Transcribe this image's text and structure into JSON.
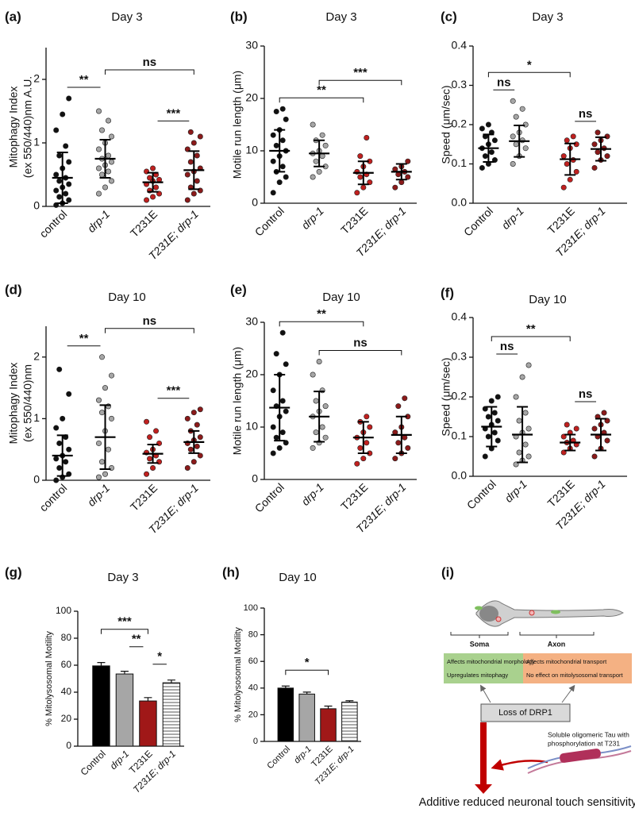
{
  "chart_data": [
    {
      "type": "dot",
      "panel": "(a)",
      "title": "Day 3",
      "ylabel": [
        "Mitophagy Index",
        "(ex 550/440)nm A.U."
      ],
      "categories": [
        "control",
        "drp-1",
        "T231E",
        "T231E; drp-1"
      ],
      "groups": [
        {
          "color": "#111111",
          "mean": 0.45,
          "sd": 0.4,
          "points": [
            0.02,
            0.05,
            0.1,
            0.15,
            0.2,
            0.25,
            0.3,
            0.35,
            0.4,
            0.45,
            0.5,
            0.6,
            0.7,
            0.8,
            0.95,
            1.2,
            1.45,
            1.7
          ]
        },
        {
          "color": "#a6a6a6",
          "mean": 0.75,
          "sd": 0.3,
          "points": [
            0.2,
            0.3,
            0.4,
            0.5,
            0.55,
            0.6,
            0.65,
            0.7,
            0.75,
            0.8,
            0.9,
            1.0,
            1.1,
            1.2,
            1.35,
            1.5
          ]
        },
        {
          "color": "#c0201f",
          "mean": 0.38,
          "sd": 0.15,
          "points": [
            0.1,
            0.15,
            0.2,
            0.25,
            0.3,
            0.35,
            0.4,
            0.42,
            0.45,
            0.5,
            0.55,
            0.6
          ]
        },
        {
          "color": "#8b1a1a",
          "mean": 0.57,
          "sd": 0.3,
          "points": [
            0.1,
            0.2,
            0.25,
            0.3,
            0.4,
            0.5,
            0.55,
            0.6,
            0.7,
            0.8,
            0.9,
            1.0,
            1.1,
            1.17
          ]
        }
      ],
      "ylim": [
        0,
        2.5
      ],
      "yticks": [
        0,
        1,
        2
      ],
      "brackets": [
        {
          "from": 0,
          "to": 1,
          "label": "**"
        },
        {
          "from": 2,
          "to": 3,
          "label": "***"
        },
        {
          "from": 1,
          "to": 3,
          "label": "ns"
        }
      ]
    },
    {
      "type": "dot",
      "panel": "(b)",
      "title": "Day 3",
      "ylabel": [
        "Motile run length (μm)"
      ],
      "categories": [
        "Control",
        "drp-1",
        "T231E",
        "T231E; drp-1"
      ],
      "groups": [
        {
          "color": "#111111",
          "mean": 10,
          "sd": 4,
          "points": [
            2,
            4,
            5,
            6,
            7,
            8,
            9,
            10,
            11,
            12,
            13,
            14,
            16,
            17.5,
            18
          ]
        },
        {
          "color": "#a6a6a6",
          "mean": 9.5,
          "sd": 2.5,
          "points": [
            5,
            6,
            7,
            8,
            9,
            9.5,
            10,
            11,
            12,
            13,
            15
          ]
        },
        {
          "color": "#c0201f",
          "mean": 5.8,
          "sd": 2.2,
          "points": [
            2,
            3,
            4,
            5,
            5.5,
            6,
            7,
            8,
            9,
            12.5
          ]
        },
        {
          "color": "#8b1a1a",
          "mean": 6,
          "sd": 1.5,
          "points": [
            3,
            4,
            5,
            5.5,
            6,
            6.5,
            7,
            8
          ]
        }
      ],
      "ylim": [
        0,
        30
      ],
      "yticks": [
        0,
        10,
        20,
        30
      ],
      "brackets": [
        {
          "from": 0,
          "to": 2,
          "label": "**"
        },
        {
          "from": 1,
          "to": 3,
          "label": "***"
        }
      ]
    },
    {
      "type": "dot",
      "panel": "(c)",
      "title": "Day 3",
      "ylabel": [
        "Speed (μm/sec)"
      ],
      "categories": [
        "Control",
        "drp-1",
        "T231E",
        "T231E; drp-1"
      ],
      "groups": [
        {
          "color": "#111111",
          "mean": 0.14,
          "sd": 0.035,
          "points": [
            0.09,
            0.1,
            0.11,
            0.12,
            0.13,
            0.14,
            0.15,
            0.16,
            0.17,
            0.18,
            0.19,
            0.2
          ]
        },
        {
          "color": "#a6a6a6",
          "mean": 0.158,
          "sd": 0.04,
          "points": [
            0.1,
            0.12,
            0.14,
            0.15,
            0.16,
            0.17,
            0.18,
            0.2,
            0.22,
            0.24,
            0.26
          ]
        },
        {
          "color": "#c0201f",
          "mean": 0.112,
          "sd": 0.04,
          "points": [
            0.04,
            0.06,
            0.08,
            0.1,
            0.11,
            0.12,
            0.14,
            0.15,
            0.16,
            0.17
          ]
        },
        {
          "color": "#8b1a1a",
          "mean": 0.138,
          "sd": 0.03,
          "points": [
            0.09,
            0.11,
            0.12,
            0.13,
            0.14,
            0.15,
            0.16,
            0.17,
            0.18
          ]
        }
      ],
      "ylim": [
        0,
        0.4
      ],
      "yticks": [
        {
          "value": 0,
          "label": "0.0"
        },
        0.1,
        0.2,
        0.3,
        0.4
      ],
      "brackets": [
        {
          "from": 0,
          "to": 1,
          "label": "ns"
        },
        {
          "from": 2,
          "to": 3,
          "label": "ns"
        },
        {
          "from": 0,
          "to": 2,
          "label": "*"
        }
      ]
    },
    {
      "type": "dot",
      "panel": "(d)",
      "title": "Day 10",
      "ylabel": [
        "Mitophagy Index",
        "(ex 550/440)nm"
      ],
      "categories": [
        "control",
        "drp-1",
        "T231E",
        "T231E; drp-1"
      ],
      "groups": [
        {
          "color": "#111111",
          "mean": 0.4,
          "sd": 0.33,
          "points": [
            0,
            0.05,
            0.1,
            0.2,
            0.3,
            0.35,
            0.4,
            0.5,
            0.6,
            0.7,
            0.85,
            1.0,
            1.4,
            1.8
          ]
        },
        {
          "color": "#a6a6a6",
          "mean": 0.7,
          "sd": 0.52,
          "points": [
            0.05,
            0.1,
            0.2,
            0.3,
            0.5,
            0.6,
            0.8,
            1.0,
            1.1,
            1.2,
            1.3,
            1.5,
            1.7,
            2.0
          ]
        },
        {
          "color": "#c0201f",
          "mean": 0.43,
          "sd": 0.15,
          "points": [
            0.1,
            0.2,
            0.3,
            0.35,
            0.4,
            0.45,
            0.5,
            0.6,
            0.7,
            0.8,
            0.95
          ]
        },
        {
          "color": "#8b1a1a",
          "mean": 0.62,
          "sd": 0.18,
          "points": [
            0.2,
            0.3,
            0.4,
            0.5,
            0.55,
            0.6,
            0.65,
            0.7,
            0.8,
            0.9,
            1.0,
            1.1,
            1.15
          ]
        }
      ],
      "ylim": [
        0,
        2.5
      ],
      "yticks": [
        0,
        1,
        2
      ],
      "brackets": [
        {
          "from": 0,
          "to": 1,
          "label": "**"
        },
        {
          "from": 2,
          "to": 3,
          "label": "***"
        },
        {
          "from": 1,
          "to": 3,
          "label": "ns"
        }
      ]
    },
    {
      "type": "dot",
      "panel": "(e)",
      "title": "Day 10",
      "ylabel": [
        "Motile run length (μm)"
      ],
      "categories": [
        "Control",
        "drp-1",
        "T231E",
        "T231E; drp-1"
      ],
      "groups": [
        {
          "color": "#111111",
          "mean": 13.7,
          "sd": 6.3,
          "points": [
            5,
            6,
            7,
            8,
            9,
            10,
            12,
            13,
            14,
            15,
            17,
            20,
            22,
            24,
            28
          ]
        },
        {
          "color": "#a6a6a6",
          "mean": 12,
          "sd": 4.8,
          "points": [
            6,
            7,
            8,
            9,
            10,
            12,
            13,
            14,
            15,
            17,
            20,
            22.5
          ]
        },
        {
          "color": "#c0201f",
          "mean": 8,
          "sd": 3,
          "points": [
            3,
            4,
            5,
            6,
            7,
            8,
            9,
            10,
            11,
            12
          ]
        },
        {
          "color": "#8b1a1a",
          "mean": 8.5,
          "sd": 3.5,
          "points": [
            4,
            5,
            6,
            7,
            8,
            9,
            10,
            12,
            14,
            15.5
          ]
        }
      ],
      "ylim": [
        0,
        30
      ],
      "yticks": [
        0,
        10,
        20,
        30
      ],
      "brackets": [
        {
          "from": 1,
          "to": 3,
          "label": "ns"
        },
        {
          "from": 0,
          "to": 2,
          "label": "**"
        }
      ]
    },
    {
      "type": "dot",
      "panel": "(f)",
      "title": "Day 10",
      "ylabel": [
        "Speed (μm/sec)"
      ],
      "categories": [
        "Control",
        "drp-1",
        "T231E",
        "T231E; drp-1"
      ],
      "groups": [
        {
          "color": "#111111",
          "mean": 0.125,
          "sd": 0.05,
          "points": [
            0.05,
            0.07,
            0.09,
            0.1,
            0.11,
            0.12,
            0.13,
            0.14,
            0.15,
            0.16,
            0.17,
            0.19,
            0.2
          ]
        },
        {
          "color": "#a6a6a6",
          "mean": 0.105,
          "sd": 0.07,
          "points": [
            0.03,
            0.04,
            0.05,
            0.06,
            0.08,
            0.1,
            0.11,
            0.12,
            0.14,
            0.16,
            0.2,
            0.25,
            0.28
          ]
        },
        {
          "color": "#c0201f",
          "mean": 0.085,
          "sd": 0.02,
          "points": [
            0.06,
            0.07,
            0.08,
            0.085,
            0.09,
            0.1,
            0.11,
            0.12,
            0.13
          ]
        },
        {
          "color": "#8b1a1a",
          "mean": 0.105,
          "sd": 0.04,
          "points": [
            0.05,
            0.07,
            0.09,
            0.1,
            0.11,
            0.12,
            0.13,
            0.14,
            0.15,
            0.16
          ]
        }
      ],
      "ylim": [
        0,
        0.4
      ],
      "yticks": [
        {
          "value": 0,
          "label": "0.0"
        },
        0.1,
        0.2,
        0.3,
        0.4
      ],
      "brackets": [
        {
          "from": 0,
          "to": 1,
          "label": "ns"
        },
        {
          "from": 2,
          "to": 3,
          "label": "ns"
        },
        {
          "from": 0,
          "to": 2,
          "label": "**"
        }
      ]
    },
    {
      "type": "bar",
      "panel": "(g)",
      "title": "Day 3",
      "ylabel": [
        "% Mitolysosomal Motility"
      ],
      "categories": [
        "Control",
        "drp-1",
        "T231E",
        "T231E; drp-1"
      ],
      "values": [
        59.5,
        53.5,
        33.5,
        47
      ],
      "errors": [
        2.5,
        2,
        2.5,
        2
      ],
      "colors": [
        "#000000",
        "#a6a6a6",
        "#a01818",
        "#ffffff"
      ],
      "stripes": [
        false,
        false,
        false,
        true
      ],
      "ylim": [
        0,
        100
      ],
      "yticks": [
        0,
        20,
        40,
        60,
        80,
        100
      ],
      "brackets": [
        {
          "from": 2,
          "to": 3,
          "label": "*"
        },
        {
          "from": 1,
          "to": 2,
          "label": "**"
        },
        {
          "from": 0,
          "to": 2,
          "label": "***"
        }
      ]
    },
    {
      "type": "bar",
      "panel": "(h)",
      "title": "Day 10",
      "ylabel": [
        "% Mitolysosomal Motility"
      ],
      "categories": [
        "Control",
        "drp-1",
        "T231E",
        "T231E; drp-1"
      ],
      "values": [
        40,
        35.5,
        24.5,
        29.5
      ],
      "errors": [
        1.5,
        1.5,
        2,
        1
      ],
      "colors": [
        "#000000",
        "#a6a6a6",
        "#a01818",
        "#ffffff"
      ],
      "stripes": [
        false,
        false,
        false,
        true
      ],
      "ylim": [
        0,
        100
      ],
      "yticks": [
        0,
        20,
        40,
        60,
        80,
        100
      ],
      "brackets": [
        {
          "from": 0,
          "to": 2,
          "label": "*"
        }
      ]
    }
  ],
  "diagram": {
    "panel": "(i)",
    "soma": "Soma",
    "axon": "Axon",
    "soma_effects": [
      "Affects mitochondrial morphology",
      "Upregulates mitophagy"
    ],
    "axon_effects": [
      "Affects mitochondrial transport",
      "No effect on mitolysosomal transport"
    ],
    "cause": "Loss of DRP1",
    "tau": [
      "Soluble oligomeric Tau with",
      "phosphorylation at T231"
    ],
    "outcome": "Additive reduced neuronal touch sensitivity"
  }
}
